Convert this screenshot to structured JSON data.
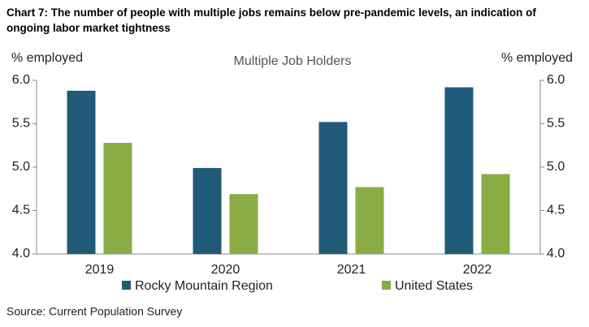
{
  "chart_data": {
    "type": "bar",
    "title": "Chart 7: The number of people with multiple jobs remains below pre-pandemic levels, an indication of ongoing labor market tightness",
    "subtitle": "Multiple Job Holders",
    "y_label": "% employed",
    "y2_label": "% employed",
    "source": "Source: Current Population Survey",
    "categories": [
      "2019",
      "2020",
      "2021",
      "2022"
    ],
    "series": [
      {
        "name": "Rocky Mountain Region",
        "color": "#1f5b78",
        "values": [
          5.88,
          4.99,
          5.52,
          5.92
        ]
      },
      {
        "name": "United States",
        "color": "#8aac45",
        "values": [
          5.28,
          4.69,
          4.77,
          4.92
        ]
      }
    ],
    "ylim": [
      4,
      6
    ],
    "yticks": [
      {
        "value": 4,
        "label": "4.0"
      },
      {
        "value": 4.5,
        "label": "4.5"
      },
      {
        "value": 5,
        "label": "5.0"
      },
      {
        "value": 5.5,
        "label": "5.5"
      },
      {
        "value": 6,
        "label": "6.0"
      }
    ],
    "y2lim": [
      4,
      6
    ],
    "y2ticks": [
      {
        "value": 4,
        "label": "4.0"
      },
      {
        "value": 4.5,
        "label": "4.5"
      },
      {
        "value": 5,
        "label": "5.0"
      },
      {
        "value": 5.5,
        "label": "5.5"
      },
      {
        "value": 6,
        "label": "6.0"
      }
    ],
    "grid": false
  }
}
